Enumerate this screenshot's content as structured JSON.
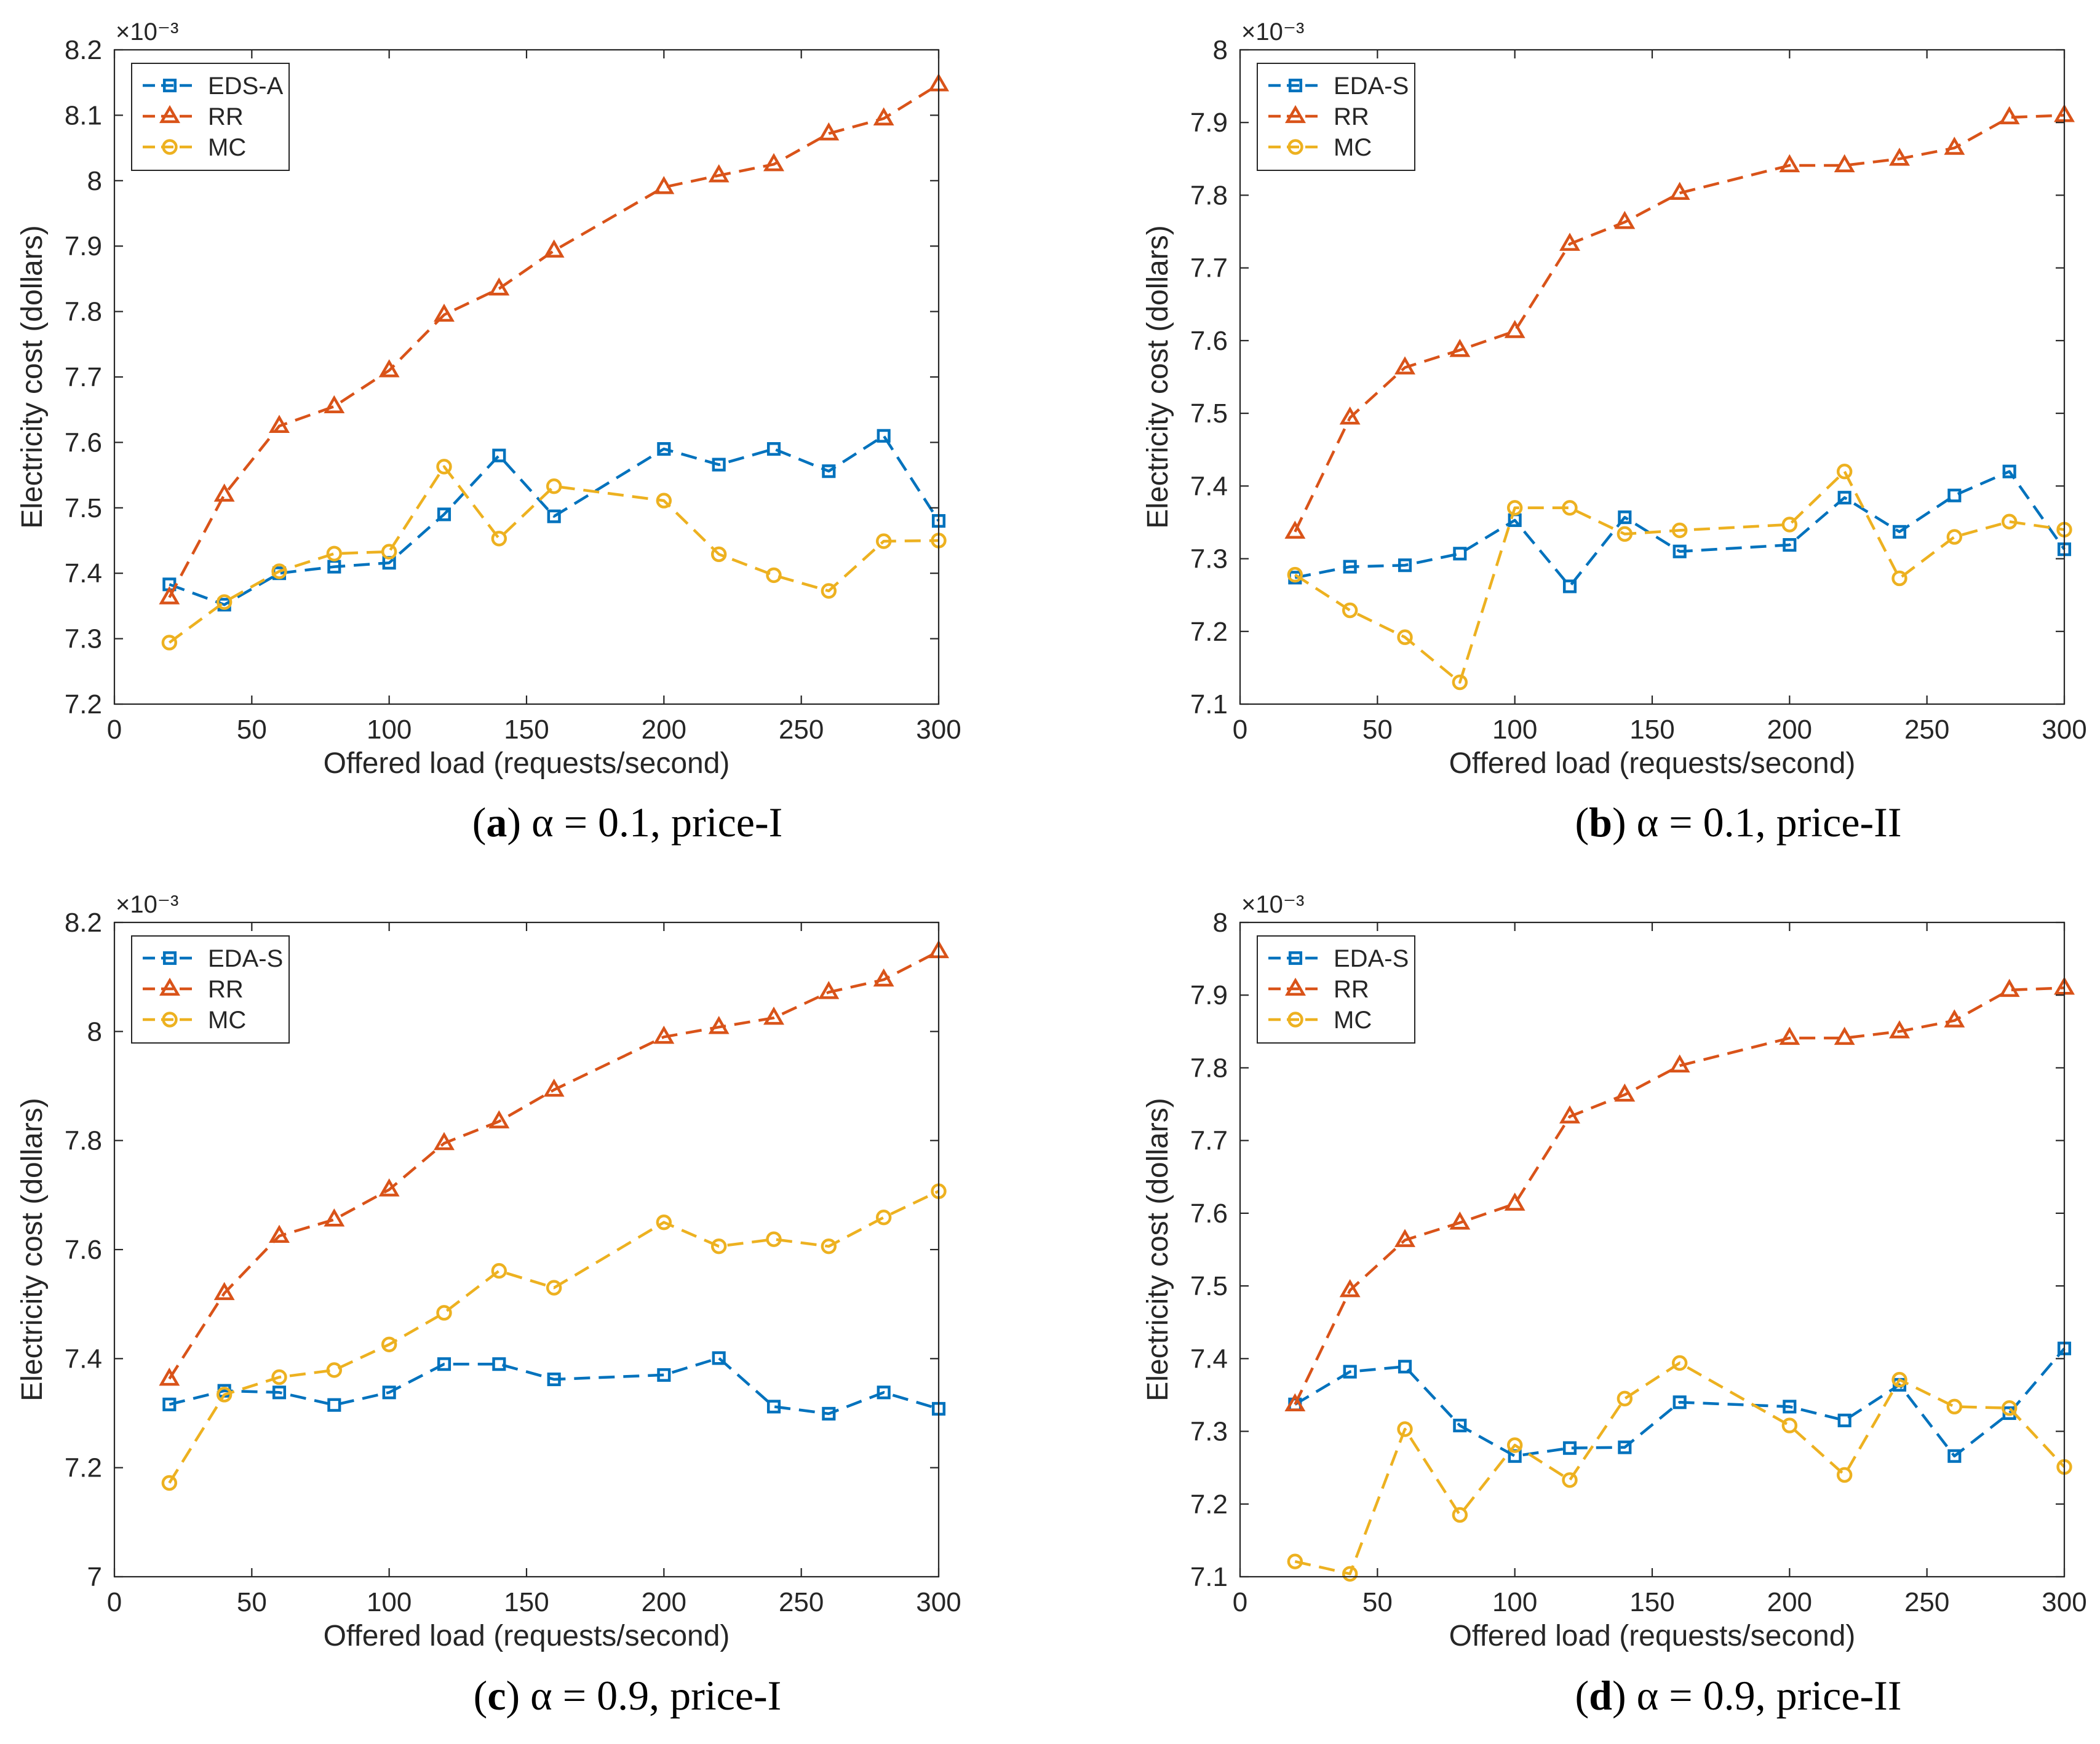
{
  "colors": {
    "eds": "#0072BD",
    "rr": "#D95319",
    "mc": "#EDB120",
    "axis": "#262626",
    "background": "#ffffff"
  },
  "chart_data": [
    {
      "type": "line",
      "panel": "a",
      "caption": {
        "label": "(a)",
        "rest": "α = 0.1, price-I"
      },
      "xlabel": "Offered load (requests/second)",
      "ylabel": "Electricity cost (dollars)",
      "exponent_label": "×10⁻³",
      "xlim": [
        0,
        300
      ],
      "ylim": [
        7.2,
        8.2
      ],
      "xticks": [
        0,
        50,
        100,
        150,
        200,
        250,
        300
      ],
      "xtick_labels": [
        "0",
        "50",
        "100",
        "150",
        "200",
        "250",
        "300"
      ],
      "yticks": [
        7.2,
        7.3,
        7.4,
        7.5,
        7.6,
        7.7,
        7.8,
        7.9,
        8.0,
        8.1,
        8.2
      ],
      "ytick_labels": [
        "7.2",
        "7.3",
        "7.4",
        "7.5",
        "7.6",
        "7.7",
        "7.8",
        "7.9",
        "8",
        "8.1",
        "8.2"
      ],
      "legend_position": "top-left",
      "x": [
        20,
        40,
        60,
        80,
        100,
        120,
        140,
        160,
        200,
        220,
        240,
        260,
        280,
        300
      ],
      "series": [
        {
          "name": "EDS-A",
          "marker": "square",
          "color": "#0072BD",
          "values": [
            7.383,
            7.352,
            7.4,
            7.41,
            7.416,
            7.49,
            7.58,
            7.487,
            7.59,
            7.566,
            7.59,
            7.556,
            7.61,
            7.48
          ]
        },
        {
          "name": "RR",
          "marker": "triangle",
          "color": "#D95319",
          "values": [
            7.363,
            7.52,
            7.625,
            7.655,
            7.71,
            7.795,
            7.835,
            7.893,
            7.99,
            8.008,
            8.025,
            8.072,
            8.095,
            8.147
          ]
        },
        {
          "name": "MC",
          "marker": "circle",
          "color": "#EDB120",
          "values": [
            7.294,
            7.356,
            7.403,
            7.43,
            7.433,
            7.563,
            7.453,
            7.533,
            7.511,
            7.429,
            7.397,
            7.373,
            7.449,
            7.45
          ]
        }
      ]
    },
    {
      "type": "line",
      "panel": "b",
      "caption": {
        "label": "(b)",
        "rest": "α = 0.1, price-II"
      },
      "xlabel": "Offered load (requests/second)",
      "ylabel": "Electricity cost (dollars)",
      "exponent_label": "×10⁻³",
      "xlim": [
        0,
        300
      ],
      "ylim": [
        7.1,
        8.0
      ],
      "xticks": [
        0,
        50,
        100,
        150,
        200,
        250,
        300
      ],
      "xtick_labels": [
        "0",
        "50",
        "100",
        "150",
        "200",
        "250",
        "300"
      ],
      "yticks": [
        7.1,
        7.2,
        7.3,
        7.4,
        7.5,
        7.6,
        7.7,
        7.8,
        7.9,
        8.0
      ],
      "ytick_labels": [
        "7.1",
        "7.2",
        "7.3",
        "7.4",
        "7.5",
        "7.6",
        "7.7",
        "7.8",
        "7.9",
        "8"
      ],
      "legend_position": "top-left",
      "x": [
        20,
        40,
        60,
        80,
        100,
        120,
        140,
        160,
        200,
        220,
        240,
        260,
        280,
        300
      ],
      "series": [
        {
          "name": "EDA-S",
          "marker": "square",
          "color": "#0072BD",
          "values": [
            7.274,
            7.289,
            7.291,
            7.307,
            7.353,
            7.262,
            7.357,
            7.31,
            7.319,
            7.384,
            7.337,
            7.387,
            7.42,
            7.313
          ]
        },
        {
          "name": "RR",
          "marker": "triangle",
          "color": "#D95319",
          "values": [
            7.337,
            7.494,
            7.563,
            7.587,
            7.613,
            7.733,
            7.763,
            7.803,
            7.841,
            7.841,
            7.85,
            7.865,
            7.907,
            7.91
          ]
        },
        {
          "name": "MC",
          "marker": "circle",
          "color": "#EDB120",
          "values": [
            7.278,
            7.229,
            7.192,
            7.13,
            7.37,
            7.37,
            7.334,
            7.339,
            7.347,
            7.42,
            7.273,
            7.33,
            7.351,
            7.34
          ]
        }
      ]
    },
    {
      "type": "line",
      "panel": "c",
      "caption": {
        "label": "(c)",
        "rest": "α = 0.9, price-I"
      },
      "xlabel": "Offered load (requests/second)",
      "ylabel": "Electricity cost (dollars)",
      "exponent_label": "×10⁻³",
      "xlim": [
        0,
        300
      ],
      "ylim": [
        7.0,
        8.2
      ],
      "xticks": [
        0,
        50,
        100,
        150,
        200,
        250,
        300
      ],
      "xtick_labels": [
        "0",
        "50",
        "100",
        "150",
        "200",
        "250",
        "300"
      ],
      "yticks": [
        7.0,
        7.2,
        7.4,
        7.6,
        7.8,
        8.0,
        8.2
      ],
      "ytick_labels": [
        "7",
        "7.2",
        "7.4",
        "7.6",
        "7.8",
        "8",
        "8.2"
      ],
      "legend_position": "top-left",
      "x": [
        20,
        40,
        60,
        80,
        100,
        120,
        140,
        160,
        200,
        220,
        240,
        260,
        280,
        300
      ],
      "series": [
        {
          "name": "EDA-S",
          "marker": "square",
          "color": "#0072BD",
          "values": [
            7.316,
            7.341,
            7.338,
            7.315,
            7.338,
            7.39,
            7.39,
            7.362,
            7.37,
            7.401,
            7.312,
            7.299,
            7.338,
            7.308
          ]
        },
        {
          "name": "RR",
          "marker": "triangle",
          "color": "#D95319",
          "values": [
            7.363,
            7.52,
            7.625,
            7.655,
            7.71,
            7.795,
            7.835,
            7.893,
            7.99,
            8.008,
            8.025,
            8.072,
            8.095,
            8.147
          ]
        },
        {
          "name": "MC",
          "marker": "circle",
          "color": "#EDB120",
          "values": [
            7.172,
            7.334,
            7.366,
            7.379,
            7.426,
            7.484,
            7.561,
            7.53,
            7.65,
            7.606,
            7.619,
            7.606,
            7.659,
            7.707
          ]
        }
      ]
    },
    {
      "type": "line",
      "panel": "d",
      "caption": {
        "label": "(d)",
        "rest": "α = 0.9, price-II"
      },
      "xlabel": "Offered load (requests/second)",
      "ylabel": "Electricity cost (dollars)",
      "exponent_label": "×10⁻³",
      "xlim": [
        0,
        300
      ],
      "ylim": [
        7.1,
        8.0
      ],
      "xticks": [
        0,
        50,
        100,
        150,
        200,
        250,
        300
      ],
      "xtick_labels": [
        "0",
        "50",
        "100",
        "150",
        "200",
        "250",
        "300"
      ],
      "yticks": [
        7.1,
        7.2,
        7.3,
        7.4,
        7.5,
        7.6,
        7.7,
        7.8,
        7.9,
        8.0
      ],
      "ytick_labels": [
        "7.1",
        "7.2",
        "7.3",
        "7.4",
        "7.5",
        "7.6",
        "7.7",
        "7.8",
        "7.9",
        "8"
      ],
      "legend_position": "top-left",
      "x": [
        20,
        40,
        60,
        80,
        100,
        120,
        140,
        160,
        200,
        220,
        240,
        260,
        280,
        300
      ],
      "series": [
        {
          "name": "EDA-S",
          "marker": "square",
          "color": "#0072BD",
          "values": [
            7.337,
            7.382,
            7.389,
            7.308,
            7.266,
            7.277,
            7.278,
            7.34,
            7.334,
            7.315,
            7.364,
            7.266,
            7.325,
            7.414
          ]
        },
        {
          "name": "RR",
          "marker": "triangle",
          "color": "#D95319",
          "values": [
            7.337,
            7.494,
            7.563,
            7.587,
            7.613,
            7.733,
            7.763,
            7.803,
            7.841,
            7.841,
            7.85,
            7.865,
            7.907,
            7.91
          ]
        },
        {
          "name": "MC",
          "marker": "circle",
          "color": "#EDB120",
          "values": [
            7.121,
            7.104,
            7.303,
            7.185,
            7.281,
            7.233,
            7.345,
            7.394,
            7.308,
            7.24,
            7.371,
            7.334,
            7.332,
            7.251
          ]
        }
      ]
    }
  ]
}
